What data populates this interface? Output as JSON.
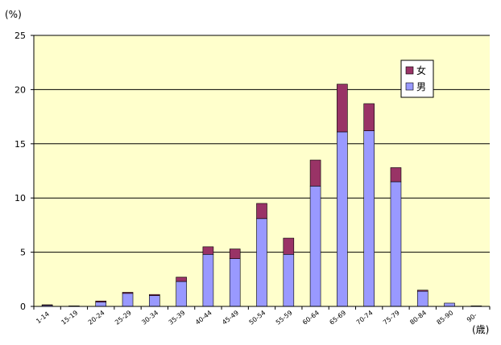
{
  "chart_data": {
    "type": "bar",
    "stacked": true,
    "y_unit": "(%)",
    "x_unit": "(歳)",
    "categories": [
      "1-14",
      "15-19",
      "20-24",
      "25-29",
      "30-34",
      "35-39",
      "40-44",
      "45-49",
      "50-54",
      "55-59",
      "60-64",
      "65-69",
      "70-74",
      "75-79",
      "80-84",
      "85-90",
      "90-"
    ],
    "series": [
      {
        "name": "男",
        "color": "#9999FF",
        "values": [
          0.1,
          0.05,
          0.4,
          1.2,
          1.0,
          2.3,
          4.8,
          4.4,
          8.1,
          4.8,
          11.1,
          16.1,
          16.2,
          11.5,
          1.4,
          0.3,
          0.05
        ]
      },
      {
        "name": "女",
        "color": "#993366",
        "values": [
          0.05,
          0.0,
          0.1,
          0.1,
          0.1,
          0.4,
          0.7,
          0.9,
          1.4,
          1.5,
          2.4,
          4.4,
          2.5,
          1.3,
          0.1,
          0.0,
          0.0
        ]
      }
    ],
    "ylim": [
      0,
      25
    ],
    "yticks": [
      0,
      5,
      10,
      15,
      20,
      25
    ],
    "grid": true,
    "legend": {
      "position": "top-right",
      "order": [
        "女",
        "男"
      ]
    },
    "plot_background": "#FFFFCC"
  }
}
